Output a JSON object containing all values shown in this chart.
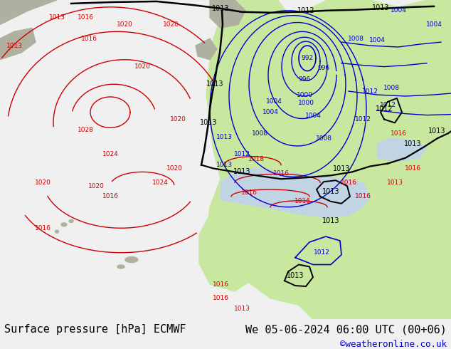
{
  "title_left": "Surface pressure [hPa] ECMWF",
  "title_right": "We 05-06-2024 06:00 UTC (00+06)",
  "credit": "©weatheronline.co.uk",
  "footer_bg": "#f0f0f0",
  "label_color_left": "#000000",
  "label_color_right": "#000000",
  "credit_color": "#0000cc",
  "font_size_footer": 11,
  "font_size_credit": 9,
  "figsize": [
    6.34,
    4.9
  ],
  "dpi": 100,
  "ocean_color": "#d8e8f0",
  "land_color": "#c8e8a0",
  "grey_color": "#b0b0a0",
  "red_color": "#cc0000",
  "blue_color": "#0000cc",
  "black_color": "#000000"
}
